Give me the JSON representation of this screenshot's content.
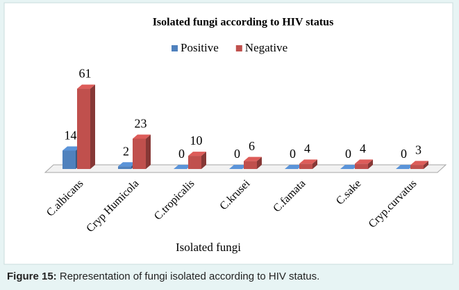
{
  "chart_data": {
    "type": "bar3d",
    "title": "Isolated fungi according to HIV status",
    "x_label": "Isolated fungi",
    "categories": [
      "C.albicans",
      "Cryp Humicola",
      "C.tropicalis",
      "C.krusei",
      "C.famata",
      "C.sake",
      "Cryp.curvatus"
    ],
    "series": [
      {
        "name": "Positive",
        "color": "#4f81bd",
        "values": [
          14,
          2,
          0,
          0,
          0,
          0,
          0
        ]
      },
      {
        "name": "Negative",
        "color": "#c0504d",
        "values": [
          61,
          23,
          10,
          6,
          4,
          4,
          3
        ]
      }
    ],
    "ylim": [
      0,
      65
    ]
  },
  "caption": {
    "label": "Figure 15:",
    "text": " Representation of fungi isolated according to HIV status."
  }
}
